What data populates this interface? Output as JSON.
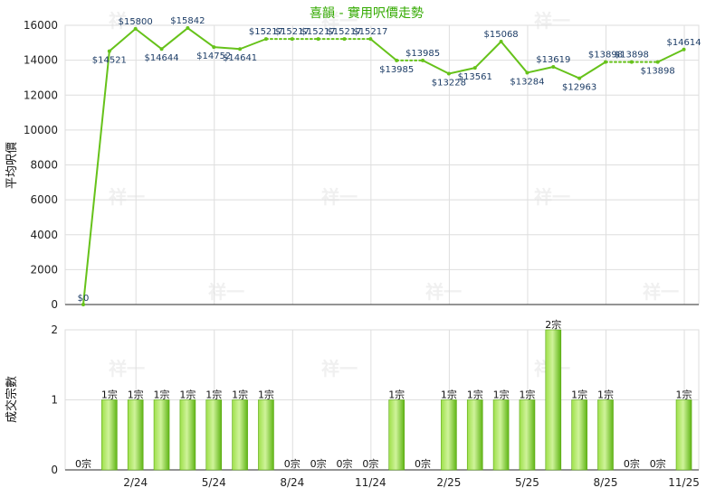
{
  "chart_data": [
    {
      "type": "line",
      "title": "喜韻 - 實用呎價走勢",
      "ylabel": "平均呎價",
      "ylim": [
        0,
        16000
      ],
      "yticks": [
        "0",
        "2000",
        "4000",
        "6000",
        "8000",
        "10000",
        "12000",
        "14000",
        "16000"
      ],
      "grid": true,
      "points": [
        {
          "x": 0,
          "y": 0,
          "label": "$0",
          "style": "solid"
        },
        {
          "x": 1,
          "y": 14521,
          "label": "$14521",
          "style": "solid"
        },
        {
          "x": 2,
          "y": 15800,
          "label": "$15800",
          "style": "solid"
        },
        {
          "x": 3,
          "y": 14644,
          "label": "$14644",
          "style": "solid"
        },
        {
          "x": 4,
          "y": 15842,
          "label": "$15842",
          "style": "solid"
        },
        {
          "x": 5,
          "y": 14752,
          "label": "$14752",
          "style": "solid"
        },
        {
          "x": 6,
          "y": 14641,
          "label": "$14641",
          "style": "solid"
        },
        {
          "x": 7,
          "y": 15217,
          "label": "$15217",
          "style": "solid"
        },
        {
          "x": 8,
          "y": 15217,
          "label": "$15217",
          "style": "dotted"
        },
        {
          "x": 9,
          "y": 15217,
          "label": "$15217",
          "style": "dotted"
        },
        {
          "x": 10,
          "y": 15217,
          "label": "$15217",
          "style": "dotted"
        },
        {
          "x": 11,
          "y": 15217,
          "label": "$15217",
          "style": "dotted"
        },
        {
          "x": 12,
          "y": 13985,
          "label": "$13985",
          "style": "solid"
        },
        {
          "x": 13,
          "y": 13985,
          "label": "$13985",
          "style": "dotted"
        },
        {
          "x": 14,
          "y": 13228,
          "label": "$13228",
          "style": "solid"
        },
        {
          "x": 15,
          "y": 13561,
          "label": "$13561",
          "style": "solid"
        },
        {
          "x": 16,
          "y": 15068,
          "label": "$15068",
          "style": "solid"
        },
        {
          "x": 17,
          "y": 13284,
          "label": "$13284",
          "style": "solid"
        },
        {
          "x": 18,
          "y": 13619,
          "label": "$13619",
          "style": "solid"
        },
        {
          "x": 19,
          "y": 12963,
          "label": "$12963",
          "style": "solid"
        },
        {
          "x": 20,
          "y": 13898,
          "label": "$13898",
          "style": "solid"
        },
        {
          "x": 21,
          "y": 13898,
          "label": "$13898",
          "style": "dotted"
        },
        {
          "x": 22,
          "y": 13898,
          "label": "$13898",
          "style": "dotted"
        },
        {
          "x": 23,
          "y": 14614,
          "label": "$14614",
          "style": "solid"
        }
      ],
      "line_color": "#66c21a"
    },
    {
      "type": "bar",
      "ylabel": "成交宗數",
      "ylim": [
        0,
        2
      ],
      "yticks": [
        "0",
        "1",
        "2"
      ],
      "grid": true,
      "values": [
        0,
        1,
        1,
        1,
        1,
        1,
        1,
        1,
        0,
        0,
        0,
        0,
        1,
        0,
        1,
        1,
        1,
        1,
        2,
        1,
        1,
        0,
        0,
        1
      ],
      "labels": [
        "0宗",
        "1宗",
        "1宗",
        "1宗",
        "1宗",
        "1宗",
        "1宗",
        "1宗",
        "0宗",
        "0宗",
        "0宗",
        "0宗",
        "1宗",
        "0宗",
        "1宗",
        "1宗",
        "1宗",
        "1宗",
        "2宗",
        "1宗",
        "1宗",
        "0宗",
        "0宗",
        "1宗"
      ],
      "bar_color": "#77cc22"
    }
  ],
  "x_axis": {
    "tick_labels": [
      "2/24",
      "5/24",
      "8/24",
      "11/24",
      "2/25",
      "5/25",
      "8/25",
      "11/25"
    ],
    "tick_at_point": [
      2,
      5,
      8,
      11,
      14,
      17,
      20,
      23
    ]
  },
  "watermark": "祥一"
}
